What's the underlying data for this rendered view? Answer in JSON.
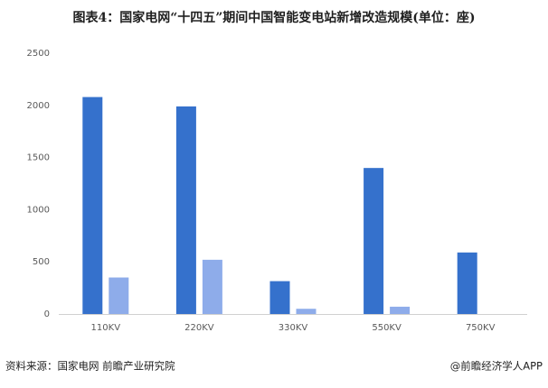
{
  "chart_data": {
    "type": "bar",
    "title": "图表4：国家电网“十四五”期间中国智能变电站新增改造规模(单位：座)",
    "categories": [
      "110KV",
      "220KV",
      "330KV",
      "550KV",
      "750KV"
    ],
    "series": [
      {
        "color": "#3571cc",
        "values": [
          2080,
          1990,
          315,
          1400,
          590
        ]
      },
      {
        "color": "#8eacea",
        "values": [
          350,
          520,
          50,
          70,
          null
        ]
      }
    ],
    "ylim": [
      0,
      2500
    ],
    "yticks": [
      0,
      500,
      1000,
      1500,
      2000,
      2500
    ],
    "source": "资料来源：国家电网 前瞻产业研究院",
    "credit": "@前瞻经济学人APP"
  }
}
